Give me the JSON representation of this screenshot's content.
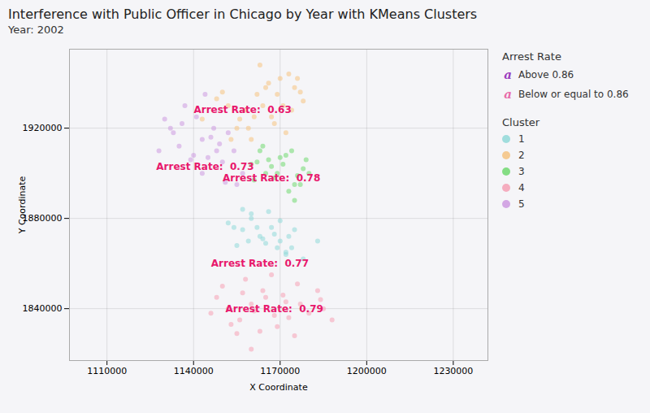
{
  "chart_data": {
    "type": "scatter",
    "title": "Interference with Public Officer in Chicago by Year with KMeans Clusters",
    "subtitle": "Year: 2002",
    "xlabel": "X Coordinate",
    "ylabel": "Y Coordinate",
    "xlim": [
      1097000,
      1242000
    ],
    "ylim": [
      1817000,
      1955000
    ],
    "xticks": [
      1110000,
      1140000,
      1170000,
      1200000,
      1230000
    ],
    "yticks": [
      1840000,
      1880000,
      1920000
    ],
    "grid": true,
    "legend": "right",
    "legend_title": "Cluster",
    "series": [
      {
        "name": "1",
        "color": "#90d8d8",
        "x": [
          1152000,
          1157000,
          1160000,
          1163000,
          1165000,
          1167000,
          1170000,
          1172000,
          1160000,
          1168000,
          1157000,
          1174000,
          1162000,
          1164000,
          1170000,
          1154000,
          1172000,
          1166000,
          1159000,
          1173000,
          1155000,
          1178000,
          1169000,
          1175000,
          1183000
        ],
        "y": [
          1878000,
          1875000,
          1882000,
          1872000,
          1869000,
          1876000,
          1870000,
          1864000,
          1880000,
          1873000,
          1884000,
          1867000,
          1876000,
          1871000,
          1879000,
          1876000,
          1865000,
          1883000,
          1870000,
          1872000,
          1868000,
          1862000,
          1867000,
          1875000,
          1870000
        ]
      },
      {
        "name": "2",
        "color": "#f5c280",
        "x": [
          1148000,
          1152000,
          1158000,
          1162000,
          1166000,
          1170000,
          1173000,
          1175000,
          1178000,
          1155000,
          1161000,
          1168000,
          1172000,
          1164000,
          1150000,
          1156000,
          1169000,
          1174000,
          1176000,
          1153000,
          1165000,
          1159000,
          1177000,
          1143000,
          1171000,
          1160000,
          1167000,
          1163000
        ],
        "y": [
          1933000,
          1930000,
          1928000,
          1935000,
          1940000,
          1942000,
          1944000,
          1938000,
          1932000,
          1920000,
          1925000,
          1922000,
          1918000,
          1930000,
          1936000,
          1924000,
          1935000,
          1928000,
          1942000,
          1915000,
          1938000,
          1920000,
          1936000,
          1924000,
          1930000,
          1915000,
          1925000,
          1948000
        ]
      },
      {
        "name": "3",
        "color": "#70d870",
        "x": [
          1160000,
          1163000,
          1166000,
          1169000,
          1172000,
          1175000,
          1178000,
          1161000,
          1164000,
          1167000,
          1170000,
          1173000,
          1176000,
          1162000,
          1168000,
          1174000,
          1177000,
          1165000,
          1171000,
          1179000,
          1180000,
          1175000
        ],
        "y": [
          1904000,
          1910000,
          1906000,
          1900000,
          1908000,
          1895000,
          1902000,
          1897000,
          1912000,
          1903000,
          1907000,
          1892000,
          1899000,
          1905000,
          1898000,
          1910000,
          1895000,
          1900000,
          1904000,
          1906000,
          1900000,
          1888000
        ]
      },
      {
        "name": "4",
        "color": "#f5a0b5",
        "x": [
          1148000,
          1152000,
          1156000,
          1160000,
          1164000,
          1168000,
          1172000,
          1176000,
          1180000,
          1184000,
          1153000,
          1157000,
          1161000,
          1165000,
          1169000,
          1173000,
          1177000,
          1150000,
          1163000,
          1171000,
          1158000,
          1185000,
          1146000,
          1155000,
          1167000,
          1188000,
          1175000,
          1160000,
          1183000
        ],
        "y": [
          1845000,
          1840000,
          1835000,
          1842000,
          1848000,
          1837000,
          1843000,
          1851000,
          1838000,
          1844000,
          1833000,
          1847000,
          1839000,
          1845000,
          1832000,
          1836000,
          1842000,
          1850000,
          1830000,
          1846000,
          1853000,
          1840000,
          1838000,
          1829000,
          1855000,
          1835000,
          1828000,
          1822000,
          1848000
        ]
      },
      {
        "name": "5",
        "color": "#cc99e0",
        "x": [
          1133000,
          1136000,
          1140000,
          1143000,
          1147000,
          1150000,
          1154000,
          1157000,
          1135000,
          1141000,
          1145000,
          1149000,
          1152000,
          1139000,
          1146000,
          1132000,
          1155000,
          1143000,
          1148000,
          1137000,
          1130000,
          1144000,
          1151000,
          1128000
        ],
        "y": [
          1918000,
          1922000,
          1908000,
          1915000,
          1920000,
          1905000,
          1910000,
          1900000,
          1912000,
          1925000,
          1907000,
          1913000,
          1918000,
          1906000,
          1916000,
          1920000,
          1895000,
          1900000,
          1910000,
          1930000,
          1924000,
          1935000,
          1896000,
          1910000
        ]
      }
    ],
    "annotations": [
      {
        "text": "Arrest Rate:  0.77",
        "x": 1163000,
        "y": 1860000,
        "color": "#e8186c"
      },
      {
        "text": "Arrest Rate:  0.63",
        "x": 1157000,
        "y": 1928000,
        "color": "#e8186c"
      },
      {
        "text": "Arrest Rate:  0.78",
        "x": 1167000,
        "y": 1898000,
        "color": "#e8186c"
      },
      {
        "text": "Arrest Rate:  0.79",
        "x": 1168000,
        "y": 1840000,
        "color": "#e8186c"
      },
      {
        "text": "Arrest Rate:  0.73",
        "x": 1144000,
        "y": 1903000,
        "color": "#e8186c"
      }
    ],
    "arrest_rate_legend": {
      "title": "Arrest Rate",
      "entries": [
        {
          "label": "Above 0.86",
          "color": "#9b3dbe",
          "marker": "a"
        },
        {
          "label": "Below or equal to 0.86",
          "color": "#e86caa",
          "marker": "a"
        }
      ]
    }
  }
}
